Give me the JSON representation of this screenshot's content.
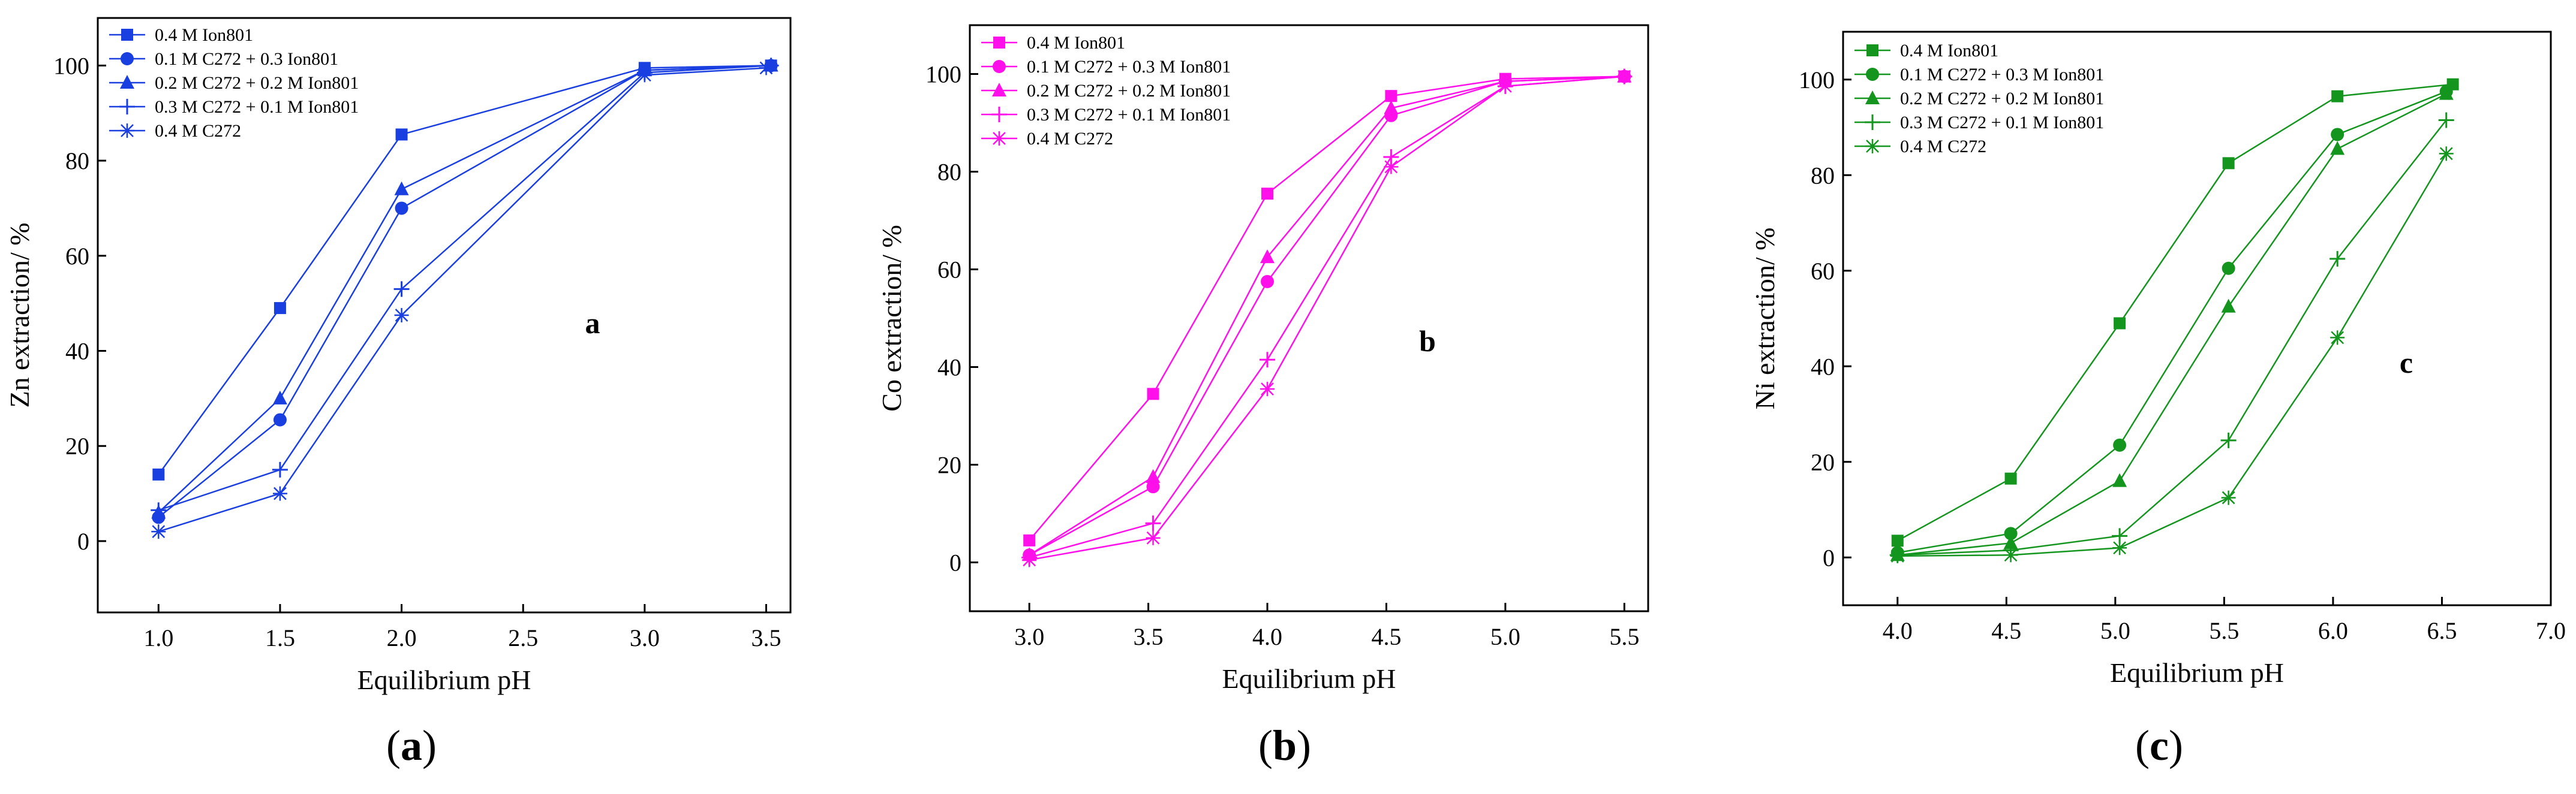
{
  "chart_data": [
    {
      "type": "line",
      "panel": "a",
      "caption": "(a)",
      "caption_parts": {
        "open": "(",
        "letter": "a",
        "close": ")"
      },
      "annotation": "a",
      "xlabel": "Equilibrium pH",
      "ylabel": "Zn extraction/ %",
      "xlim": [
        0.75,
        3.6
      ],
      "ylim": [
        -15,
        110
      ],
      "xticks": [
        1.0,
        1.5,
        2.0,
        2.5,
        3.0,
        3.5
      ],
      "xtick_labels": [
        "1.0",
        "1.5",
        "2.0",
        "2.5",
        "3.0",
        "3.5"
      ],
      "yticks": [
        0,
        20,
        40,
        60,
        80,
        100
      ],
      "ytick_labels": [
        "0",
        "20",
        "40",
        "60",
        "80",
        "100"
      ],
      "color": "#1a3fe0",
      "legend_position": "top-left",
      "series": [
        {
          "name": "0.4 M Ion801",
          "marker": "square",
          "x": [
            1.0,
            1.5,
            2.0,
            3.0,
            3.52
          ],
          "y": [
            14,
            49,
            85.5,
            99.5,
            100
          ]
        },
        {
          "name": "0.1 M C272 + 0.3 Ion801",
          "marker": "circle",
          "x": [
            1.0,
            1.5,
            2.0,
            3.0,
            3.52
          ],
          "y": [
            5,
            25.5,
            70,
            99,
            100
          ]
        },
        {
          "name": "0.2 M C272 + 0.2 M Ion801",
          "marker": "triangle",
          "x": [
            1.0,
            1.5,
            2.0,
            3.0,
            3.52
          ],
          "y": [
            6,
            30,
            74,
            99,
            100
          ]
        },
        {
          "name": "0.3 M C272 + 0.1 M Ion801",
          "marker": "plus",
          "x": [
            1.0,
            1.5,
            2.0,
            3.0,
            3.52
          ],
          "y": [
            6.5,
            15,
            53,
            98.5,
            100
          ]
        },
        {
          "name": "0.4 M C272",
          "marker": "asterisk",
          "x": [
            1.0,
            1.5,
            2.0,
            3.0,
            3.5
          ],
          "y": [
            2,
            10,
            47.5,
            98,
            99.5
          ]
        }
      ]
    },
    {
      "type": "line",
      "panel": "b",
      "caption": "(b)",
      "caption_parts": {
        "open": "(",
        "letter": "b",
        "close": ")"
      },
      "annotation": "b",
      "xlabel": "Equilibrium pH",
      "ylabel": "Co extraction/ %",
      "xlim": [
        2.75,
        5.6
      ],
      "ylim": [
        -10,
        110
      ],
      "xticks": [
        3.0,
        3.5,
        4.0,
        4.5,
        5.0,
        5.5
      ],
      "xtick_labels": [
        "3.0",
        "3.5",
        "4.0",
        "4.5",
        "5.0",
        "5.5"
      ],
      "yticks": [
        0,
        20,
        40,
        60,
        80,
        100
      ],
      "ytick_labels": [
        "0",
        "20",
        "40",
        "60",
        "80",
        "100"
      ],
      "color": "#ff10ea",
      "legend_position": "top-left",
      "series": [
        {
          "name": "0.4 M Ion801",
          "marker": "square",
          "x": [
            3.0,
            3.52,
            4.0,
            4.52,
            5.0,
            5.5
          ],
          "y": [
            4.5,
            34.5,
            75.5,
            95.5,
            99,
            99.5
          ]
        },
        {
          "name": "0.1 M C272 + 0.3 M Ion801",
          "marker": "circle",
          "x": [
            3.0,
            3.52,
            4.0,
            4.52,
            5.0,
            5.5
          ],
          "y": [
            1.5,
            15.5,
            57.5,
            91.5,
            98.5,
            99.5
          ]
        },
        {
          "name": "0.2 M C272 + 0.2 M Ion801",
          "marker": "triangle",
          "x": [
            3.0,
            3.52,
            4.0,
            4.52,
            5.0,
            5.5
          ],
          "y": [
            1.5,
            17.5,
            62.5,
            93,
            98.5,
            99.5
          ]
        },
        {
          "name": "0.3 M C272 + 0.1 M Ion801",
          "marker": "plus",
          "x": [
            3.0,
            3.52,
            4.0,
            4.52,
            5.0,
            5.5
          ],
          "y": [
            1,
            8,
            41.5,
            83,
            97.5,
            99.5
          ]
        },
        {
          "name": "0.4 M C272",
          "marker": "asterisk",
          "x": [
            3.0,
            3.52,
            4.0,
            4.52,
            5.0,
            5.5
          ],
          "y": [
            0.5,
            5,
            35.5,
            81,
            97.5,
            99.5
          ]
        }
      ]
    },
    {
      "type": "line",
      "panel": "c",
      "caption": "(c)",
      "caption_parts": {
        "open": "(",
        "letter": "c",
        "close": ")"
      },
      "annotation": "c",
      "xlabel": "Equilibrium pH",
      "ylabel": "Ni extraction/ %",
      "xlim": [
        3.75,
        7.0
      ],
      "ylim": [
        -10,
        110
      ],
      "xticks": [
        4.0,
        4.5,
        5.0,
        5.5,
        6.0,
        6.5,
        7.0
      ],
      "xtick_labels": [
        "4.0",
        "4.5",
        "5.0",
        "5.5",
        "6.0",
        "6.5",
        "7.0"
      ],
      "yticks": [
        0,
        20,
        40,
        60,
        80,
        100
      ],
      "ytick_labels": [
        "0",
        "20",
        "40",
        "60",
        "80",
        "100"
      ],
      "color": "#13951e",
      "legend_position": "top-left",
      "series": [
        {
          "name": "0.4 M Ion801",
          "marker": "square",
          "x": [
            4.0,
            4.52,
            5.02,
            5.52,
            6.02,
            6.55
          ],
          "y": [
            3.5,
            16.5,
            49,
            82.5,
            96.5,
            99
          ]
        },
        {
          "name": "0.1 M C272 + 0.3 M Ion801",
          "marker": "circle",
          "x": [
            4.0,
            4.52,
            5.02,
            5.52,
            6.02,
            6.52
          ],
          "y": [
            1,
            5,
            23.5,
            60.5,
            88.5,
            97.5
          ]
        },
        {
          "name": "0.2 M C272 + 0.2 M Ion801",
          "marker": "triangle",
          "x": [
            4.0,
            4.52,
            5.02,
            5.52,
            6.02,
            6.52
          ],
          "y": [
            0.5,
            3,
            16,
            52.5,
            85.5,
            97
          ]
        },
        {
          "name": "0.3 M C272 + 0.1 M Ion801",
          "marker": "plus",
          "x": [
            4.0,
            4.52,
            5.02,
            5.52,
            6.02,
            6.52
          ],
          "y": [
            0.5,
            1.5,
            4.5,
            24.5,
            62.5,
            91.5
          ]
        },
        {
          "name": "0.4 M C272",
          "marker": "asterisk",
          "x": [
            4.0,
            4.52,
            5.02,
            5.52,
            6.02,
            6.52
          ],
          "y": [
            0.3,
            0.5,
            2,
            12.5,
            46,
            84.5
          ]
        }
      ]
    }
  ]
}
